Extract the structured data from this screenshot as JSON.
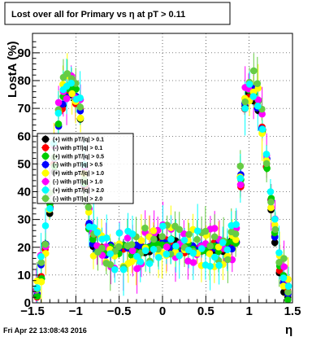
{
  "chart_data": {
    "type": "scatter",
    "title": "Lost over all for Primary vs   η at pT > 0.11",
    "xlabel": "η",
    "ylabel": "LostA (%)",
    "xlim": [
      -1.5,
      1.5
    ],
    "ylim": [
      0,
      97
    ],
    "x_ticks": [
      -1.5,
      -1,
      -0.5,
      0,
      0.5,
      1,
      1.5
    ],
    "x_tick_labels": [
      "−1.5",
      "−1",
      "−0.5",
      "0",
      "0.5",
      "1",
      "1.5"
    ],
    "y_ticks": [
      0,
      10,
      20,
      30,
      40,
      50,
      60,
      70,
      80,
      90
    ],
    "y_tick_labels": [
      "0",
      "10",
      "20",
      "30",
      "40",
      "50",
      "60",
      "70",
      "80",
      "90"
    ],
    "grid": true,
    "legend_position": "middle-left",
    "timestamp": "Fri Apr 22 13:08:43 2016",
    "series": [
      {
        "name": "(+) with pT/|q| > 0.1",
        "color": "#000000"
      },
      {
        "name": "(-) with pT/|q| > 0.1",
        "color": "#ff0000"
      },
      {
        "name": "(+) with pT/|q| > 0.5",
        "color": "#00cc00"
      },
      {
        "name": "(-) with pT/|q| > 0.5",
        "color": "#0000ff"
      },
      {
        "name": "(+) with pT/|q| > 1.0",
        "color": "#ffff00"
      },
      {
        "name": "(-) with pT/|q| > 1.0",
        "color": "#ff00ff"
      },
      {
        "name": "(+) with pT/|q| > 2.0",
        "color": "#00ffff"
      },
      {
        "name": "(-) with pT/|q| > 2.0",
        "color": "#66cc44"
      }
    ]
  }
}
